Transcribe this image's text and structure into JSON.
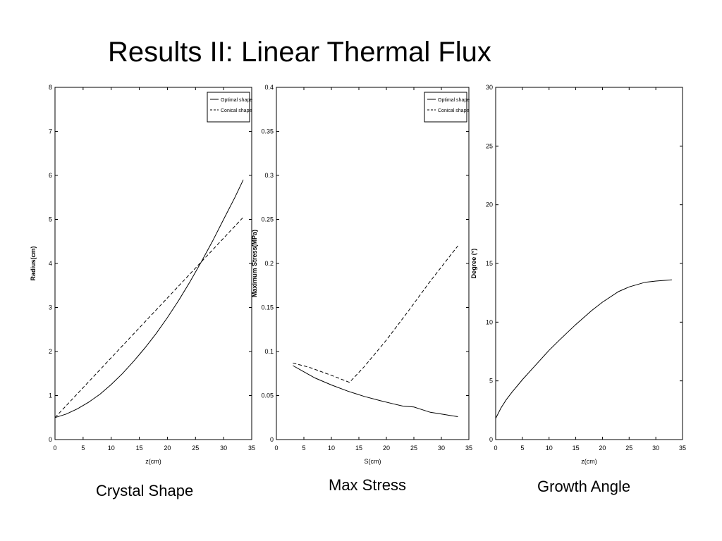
{
  "slide": {
    "title": "Results II: Linear Thermal Flux",
    "captions": [
      "Crystal Shape",
      "Max Stress",
      "Growth Angle"
    ]
  },
  "chart_data": [
    {
      "type": "line",
      "xlabel": "z(cm)",
      "ylabel": "Radius(cm)",
      "xlim": [
        0,
        35
      ],
      "ylim": [
        0,
        8
      ],
      "xticks": [
        0,
        5,
        10,
        15,
        20,
        25,
        30,
        35
      ],
      "yticks": [
        0,
        1,
        2,
        3,
        4,
        5,
        6,
        7,
        8
      ],
      "grid": false,
      "legend": "top-right",
      "series": [
        {
          "name": "Optimal shape",
          "style": "solid",
          "x": [
            0,
            2,
            4,
            6,
            8,
            10,
            12,
            14,
            16,
            18,
            20,
            22,
            24,
            26,
            28,
            30,
            32,
            33.5
          ],
          "y": [
            0.5,
            0.58,
            0.7,
            0.85,
            1.03,
            1.25,
            1.5,
            1.78,
            2.08,
            2.41,
            2.77,
            3.16,
            3.58,
            4.03,
            4.5,
            5.0,
            5.5,
            5.9
          ]
        },
        {
          "name": "Conical shape",
          "style": "dashed",
          "x": [
            0,
            33.5
          ],
          "y": [
            0.5,
            5.05
          ]
        }
      ]
    },
    {
      "type": "line",
      "xlabel": "S(cm)",
      "ylabel": "Maximum Stress(MPa)",
      "xlim": [
        0,
        35
      ],
      "ylim": [
        0,
        0.4
      ],
      "xticks": [
        0,
        5,
        10,
        15,
        20,
        25,
        30,
        35
      ],
      "yticks": [
        0,
        0.05,
        0.1,
        0.15,
        0.2,
        0.25,
        0.3,
        0.35,
        0.4
      ],
      "grid": false,
      "legend": "top-right",
      "series": [
        {
          "name": "Optimal shape",
          "style": "solid",
          "x": [
            3,
            5,
            7,
            10,
            13,
            16,
            19,
            21,
            23,
            25,
            26,
            28,
            30,
            33
          ],
          "y": [
            0.084,
            0.077,
            0.07,
            0.062,
            0.055,
            0.049,
            0.044,
            0.041,
            0.038,
            0.037,
            0.035,
            0.031,
            0.029,
            0.026
          ]
        },
        {
          "name": "Conical shape",
          "style": "dashed",
          "x": [
            3,
            6,
            10,
            13.3,
            16,
            20,
            24,
            28,
            33
          ],
          "y": [
            0.087,
            0.082,
            0.073,
            0.065,
            0.083,
            0.113,
            0.146,
            0.18,
            0.22
          ]
        }
      ]
    },
    {
      "type": "line",
      "xlabel": "z(cm)",
      "ylabel": "Degree (°)",
      "xlim": [
        0,
        35
      ],
      "ylim": [
        0,
        30
      ],
      "xticks": [
        0,
        5,
        10,
        15,
        20,
        25,
        30,
        35
      ],
      "yticks": [
        0,
        5,
        10,
        15,
        20,
        25,
        30
      ],
      "grid": false,
      "series": [
        {
          "style": "solid",
          "x": [
            0,
            1,
            2,
            3,
            5,
            7,
            10,
            12,
            15,
            18,
            20,
            23,
            25,
            28,
            30,
            33
          ],
          "y": [
            1.8,
            2.7,
            3.4,
            4.0,
            5.1,
            6.1,
            7.6,
            8.5,
            9.8,
            11.0,
            11.7,
            12.6,
            13.0,
            13.4,
            13.5,
            13.6
          ]
        }
      ]
    }
  ]
}
